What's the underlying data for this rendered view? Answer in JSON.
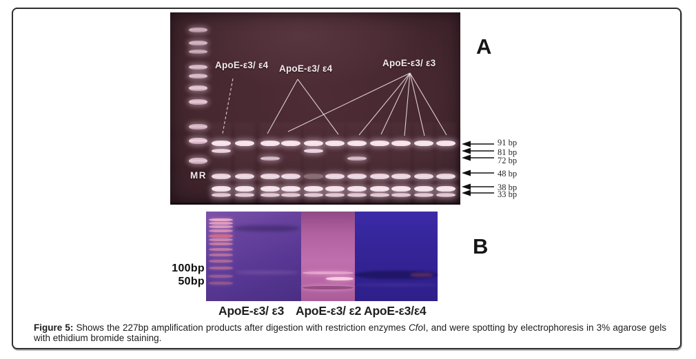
{
  "panel_a": {
    "panel_label": "A",
    "marker_lane_label": "MR",
    "genotype_annotations": [
      {
        "label": "ApoE-ε3/ ε4"
      },
      {
        "label": "ApoE-ε3/ ε4"
      },
      {
        "label": "ApoE-ε3/ ε3"
      }
    ],
    "fragment_sizes": [
      "91 bp",
      "81 bp",
      "72 bp",
      "48 bp",
      "38 bp",
      "33 bp"
    ]
  },
  "panel_b": {
    "panel_label": "B",
    "marker_labels": [
      "100bp",
      "50bp"
    ],
    "lane_labels": [
      "ApoE-ε3/ ε3",
      "ApoE-ε3/ ε2",
      "ApoE-ε3/ε4"
    ]
  },
  "caption": {
    "prefix": "Figure 5:",
    "body_before_enzyme": "Shows the 227bp amplification products after digestion with restriction enzymes",
    "enzyme_italic": "Cfo",
    "body_after_enzyme": "I, and were spotting by electrophoresis in 3% agarose gels with ethidium bromide staining."
  },
  "colors": {
    "gel_a_background": "#47282F",
    "gel_a_band_bright": "#F0D9E3",
    "annotation_line": "#ECE2E6",
    "gel_b_section1_purple": "#5C3A94",
    "gel_b_section2_pink": "#BC66A8",
    "gel_b_section3_indigo": "#32249C",
    "arrow_color": "#111111"
  }
}
